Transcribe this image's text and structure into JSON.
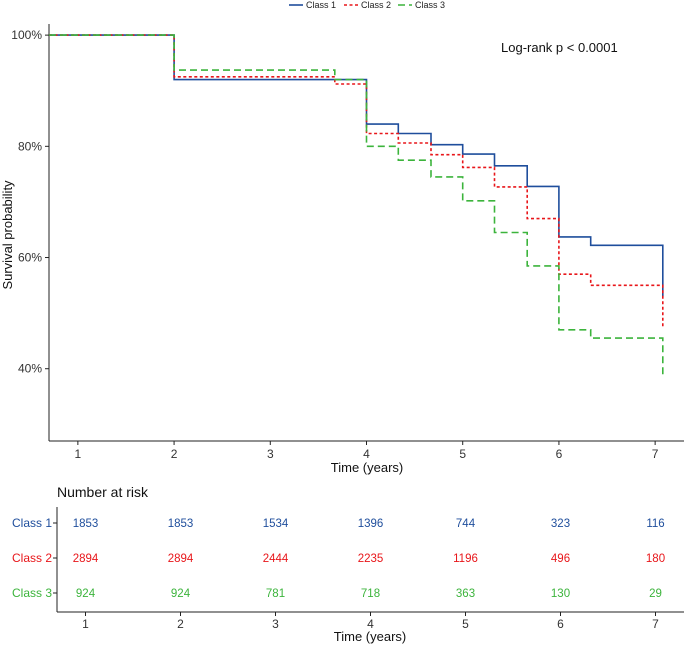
{
  "chart_data": {
    "type": "line",
    "subtype": "kaplan-meier",
    "xlabel": "Time (years)",
    "ylabel": "Survival probability",
    "xlim": [
      0.7,
      7.3
    ],
    "ylim": [
      0.27,
      1.02
    ],
    "x_ticks": [
      1,
      2,
      3,
      4,
      5,
      6,
      7
    ],
    "y_ticks": [
      {
        "value": 1.0,
        "label": "100%"
      },
      {
        "value": 0.8,
        "label": "80%"
      },
      {
        "value": 0.6,
        "label": "60%"
      },
      {
        "value": 0.4,
        "label": "40%"
      }
    ],
    "annotation": "Log-rank  p < 0.0001",
    "legend_position": "top",
    "series": [
      {
        "name": "Class 1",
        "color": "#1f4e9c",
        "dash": "solid",
        "steps": [
          [
            0.7,
            1.0
          ],
          [
            2.0,
            0.92
          ],
          [
            4.0,
            0.84
          ],
          [
            4.33,
            0.823
          ],
          [
            4.67,
            0.803
          ],
          [
            5.0,
            0.786
          ],
          [
            5.33,
            0.765
          ],
          [
            5.67,
            0.728
          ],
          [
            6.0,
            0.637
          ],
          [
            6.33,
            0.622
          ],
          [
            7.08,
            0.53
          ]
        ],
        "end_x": 7.08
      },
      {
        "name": "Class 2",
        "color": "#e8161a",
        "dash": "dotted",
        "steps": [
          [
            0.7,
            1.0
          ],
          [
            2.0,
            0.925
          ],
          [
            3.67,
            0.912
          ],
          [
            4.0,
            0.823
          ],
          [
            4.33,
            0.806
          ],
          [
            4.67,
            0.785
          ],
          [
            5.0,
            0.762
          ],
          [
            5.33,
            0.727
          ],
          [
            5.67,
            0.67
          ],
          [
            6.0,
            0.57
          ],
          [
            6.33,
            0.55
          ],
          [
            7.08,
            0.475
          ]
        ],
        "end_x": 7.08
      },
      {
        "name": "Class 3",
        "color": "#3cb43c",
        "dash": "dashed",
        "steps": [
          [
            0.7,
            1.0
          ],
          [
            2.0,
            0.937
          ],
          [
            3.67,
            0.92
          ],
          [
            4.0,
            0.8
          ],
          [
            4.33,
            0.775
          ],
          [
            4.67,
            0.745
          ],
          [
            5.0,
            0.702
          ],
          [
            5.33,
            0.645
          ],
          [
            5.67,
            0.585
          ],
          [
            6.0,
            0.47
          ],
          [
            6.33,
            0.455
          ],
          [
            7.08,
            0.39
          ]
        ],
        "end_x": 7.08
      }
    ]
  },
  "risk_table": {
    "title": "Number at risk",
    "xlabel": "Time (years)",
    "x_ticks": [
      1,
      2,
      3,
      4,
      5,
      6,
      7
    ],
    "rows": [
      {
        "name": "Class 1",
        "color": "#1f4e9c",
        "values": [
          "1853",
          "1853",
          "1534",
          "1396",
          "744",
          "323",
          "116"
        ]
      },
      {
        "name": "Class 2",
        "color": "#e8161a",
        "values": [
          "2894",
          "2894",
          "2444",
          "2235",
          "1196",
          "496",
          "180"
        ]
      },
      {
        "name": "Class 3",
        "color": "#3cb43c",
        "values": [
          "924",
          "924",
          "781",
          "718",
          "363",
          "130",
          "29"
        ]
      }
    ]
  }
}
